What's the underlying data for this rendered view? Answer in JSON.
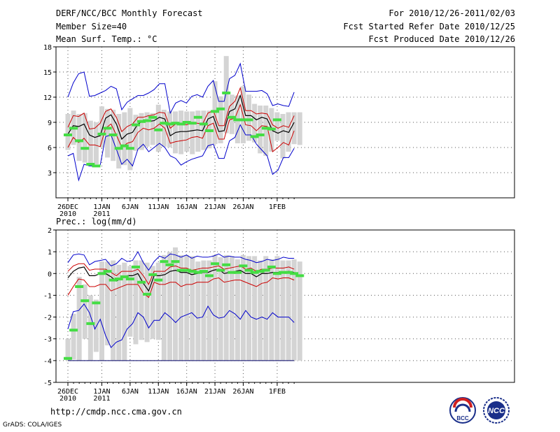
{
  "header": {
    "title": "DERF/NCC/BCC Monthly Forecast",
    "member_size": "Member Size=40",
    "variable_temp": "Mean Surf. Temp.: °C",
    "forecast_period": "For 2010/12/26-2011/02/03",
    "start_refer": "Fcst Started Refer Date 2010/12/25",
    "produced": "Fcst Produced Date 2010/12/26"
  },
  "panel2_label": "Prec.: log(mm/d)",
  "footer": {
    "url": "http://cmdp.ncc.cma.gov.cn",
    "credit": "GrADS: COLA/IGES"
  },
  "logos": {
    "bcc": "BCC",
    "ncc": "NCC"
  },
  "colors": {
    "ensemble_mean": "#000000",
    "spread": "#cc0000",
    "extremes": "#0000cc",
    "observed": "#44dd44",
    "box": "#d4d4d4",
    "grid": "#555555"
  },
  "chart_data": [
    {
      "type": "line",
      "title": "Mean Surf. Temp.: °C",
      "ylim": [
        0,
        18
      ],
      "yticks": [
        3,
        6,
        9,
        12,
        15,
        18
      ],
      "x_tick_days": [
        0,
        6,
        11,
        16,
        21,
        26,
        31,
        37
      ],
      "x_tick_labels": [
        [
          "26DEC",
          "2010"
        ],
        [
          "1JAN",
          "2011"
        ],
        [
          "6JAN"
        ],
        [
          "11JAN"
        ],
        [
          "16JAN"
        ],
        [
          "21JAN"
        ],
        [
          "26JAN"
        ],
        [
          "1FEB"
        ]
      ],
      "days": 40,
      "series": [
        {
          "name": "ensemble_mean",
          "values": [
            7.6,
            8.6,
            8.5,
            8.8,
            7.5,
            7.2,
            7.4,
            9.5,
            9.9,
            8.8,
            7.0,
            7.6,
            7.8,
            8.8,
            9.2,
            9.1,
            9.2,
            9.6,
            9.4,
            7.4,
            7.8,
            7.9,
            7.9,
            8.0,
            8.1,
            8.0,
            9.4,
            9.7,
            7.9,
            8.0,
            10.3,
            10.6,
            12.2,
            9.8,
            9.8,
            9.3,
            9.6,
            9.4,
            8.0,
            7.7,
            8.0,
            7.8,
            9.0
          ]
        },
        {
          "name": "upper_spread",
          "values": [
            8.4,
            9.8,
            9.7,
            10.1,
            8.2,
            8.3,
            8.9,
            10.3,
            10.6,
            9.6,
            7.9,
            8.5,
            8.8,
            9.6,
            9.6,
            9.8,
            9.9,
            10.2,
            10.1,
            8.3,
            8.8,
            8.9,
            8.7,
            8.9,
            8.9,
            8.8,
            10.1,
            10.4,
            8.6,
            8.6,
            10.9,
            11.5,
            13.1,
            10.4,
            10.4,
            10.0,
            10.1,
            10.0,
            8.7,
            8.3,
            8.6,
            8.4,
            9.8
          ]
        },
        {
          "name": "lower_spread",
          "values": [
            6.0,
            7.2,
            6.6,
            7.1,
            6.3,
            6.3,
            6.1,
            8.3,
            8.8,
            7.5,
            6.0,
            6.5,
            6.7,
            7.8,
            8.3,
            8.1,
            8.3,
            8.8,
            8.3,
            6.5,
            6.7,
            6.8,
            6.9,
            7.2,
            7.3,
            7.1,
            8.6,
            8.9,
            7.0,
            7.0,
            9.3,
            9.5,
            11.1,
            8.7,
            8.6,
            8.0,
            8.6,
            8.5,
            5.5,
            6.0,
            6.6,
            6.3,
            8.0
          ]
        },
        {
          "name": "maximum",
          "values": [
            12.0,
            13.7,
            14.8,
            15.0,
            12.1,
            12.2,
            12.5,
            12.8,
            13.3,
            13.0,
            10.5,
            11.4,
            11.8,
            12.2,
            12.2,
            12.5,
            12.9,
            13.6,
            13.6,
            10.1,
            11.3,
            11.6,
            11.3,
            12.1,
            12.3,
            12.0,
            13.3,
            14.0,
            11.5,
            11.5,
            14.2,
            14.6,
            16.0,
            12.7,
            12.7,
            12.7,
            12.8,
            12.4,
            11.0,
            11.2,
            11.0,
            10.9,
            12.6
          ]
        },
        {
          "name": "minimum",
          "values": [
            5.0,
            5.3,
            2.1,
            4.0,
            3.8,
            3.8,
            3.9,
            7.3,
            7.5,
            5.8,
            4.0,
            4.6,
            3.8,
            5.8,
            6.4,
            5.5,
            6.0,
            6.5,
            6.0,
            5.0,
            4.7,
            3.9,
            4.3,
            4.6,
            4.8,
            5.0,
            6.2,
            6.4,
            4.7,
            4.7,
            6.8,
            7.2,
            8.7,
            7.5,
            7.5,
            6.4,
            5.7,
            5.0,
            2.8,
            3.3,
            4.8,
            4.8,
            5.9
          ]
        },
        {
          "name": "observed",
          "values": [
            7.5,
            8.3,
            6.8,
            5.9,
            4.0,
            3.8,
            7.6,
            8.3,
            7.5,
            5.9,
            6.2,
            5.9,
            8.7,
            9.1,
            9.2,
            9.6,
            8.1,
            8.9,
            8.8,
            8.9,
            8.8,
            9.0,
            8.9,
            9.6,
            8.8,
            8.0,
            10.3,
            10.6,
            12.5,
            9.6,
            9.3,
            9.3,
            9.3,
            7.3,
            7.5,
            8.3,
            8.2,
            9.3
          ]
        }
      ],
      "box_top": [
        10.0,
        10.4,
        10.0,
        10.1,
        9.2,
        9.0,
        10.9,
        10.6,
        10.5,
        10.0,
        10.2,
        10.7,
        9.9,
        10.1,
        10.2,
        10.1,
        11.1,
        10.5,
        10.3,
        10.3,
        10.4,
        10.3,
        10.3,
        10.4,
        10.4,
        10.4,
        13.9,
        12.1,
        16.9,
        12.3,
        12.2,
        13.3,
        12.3,
        11.2,
        11.0,
        11.0,
        10.7,
        10.2,
        10.0,
        10.2,
        10.2,
        10.2
      ],
      "box_bottom": [
        5.7,
        6.3,
        4.4,
        4.2,
        3.9,
        4.0,
        6.0,
        4.8,
        4.4,
        3.5,
        3.9,
        3.3,
        5.6,
        5.7,
        6.1,
        6.3,
        5.5,
        6.1,
        6.0,
        5.3,
        5.2,
        5.5,
        5.2,
        5.5,
        5.7,
        5.9,
        6.4,
        6.5,
        7.7,
        7.6,
        6.5,
        6.5,
        6.8,
        6.6,
        5.3,
        5.0,
        5.5,
        6.8,
        4.7,
        5.5,
        6.4,
        6.3
      ]
    },
    {
      "type": "line",
      "title": "Prec.: log(mm/d)",
      "ylim": [
        -5,
        2
      ],
      "yticks": [
        -5,
        -4,
        -3,
        -2,
        -1,
        0,
        1,
        2
      ],
      "x_tick_days": [
        0,
        6,
        11,
        16,
        21,
        26,
        31,
        37
      ],
      "x_tick_labels": [
        [
          "26DEC",
          "2010"
        ],
        [
          "1JAN",
          "2011"
        ],
        [
          "6JAN"
        ],
        [
          "11JAN"
        ],
        [
          "16JAN"
        ],
        [
          "21JAN"
        ],
        [
          "26JAN"
        ],
        [
          "1FEB"
        ]
      ],
      "days": 40,
      "reference_line": -4,
      "series": [
        {
          "name": "ensemble_mean",
          "values": [
            -0.2,
            0.1,
            0.25,
            0.3,
            -0.1,
            -0.1,
            0.0,
            0.0,
            -0.15,
            -0.35,
            -0.2,
            -0.1,
            -0.1,
            0.0,
            -0.45,
            -0.8,
            -0.1,
            -0.1,
            -0.05,
            0.1,
            0.15,
            0.05,
            0.05,
            -0.05,
            0.0,
            0.05,
            0.05,
            0.15,
            0.2,
            0.0,
            0.05,
            0.1,
            0.15,
            0.0,
            0.0,
            -0.15,
            0.0,
            0.0,
            0.05,
            0.05,
            0.05,
            0.1,
            0.05
          ]
        },
        {
          "name": "upper_spread",
          "values": [
            0.1,
            0.35,
            0.45,
            0.45,
            0.15,
            0.2,
            0.2,
            0.2,
            0.05,
            -0.1,
            0.1,
            0.1,
            0.1,
            0.2,
            -0.1,
            -0.5,
            0.1,
            0.1,
            0.1,
            0.3,
            0.35,
            0.25,
            0.25,
            0.15,
            0.2,
            0.25,
            0.25,
            0.3,
            0.35,
            0.2,
            0.25,
            0.3,
            0.35,
            0.2,
            0.25,
            0.1,
            0.2,
            0.2,
            0.25,
            0.25,
            0.25,
            0.3,
            0.2
          ]
        },
        {
          "name": "lower_spread",
          "values": [
            -1.0,
            -0.6,
            -0.25,
            -0.3,
            -0.6,
            -0.6,
            -0.5,
            -0.5,
            -0.8,
            -0.7,
            -0.6,
            -0.5,
            -0.5,
            -0.5,
            -0.9,
            -1.1,
            -0.4,
            -0.5,
            -0.5,
            -0.4,
            -0.4,
            -0.6,
            -0.5,
            -0.5,
            -0.4,
            -0.4,
            -0.4,
            -0.25,
            -0.2,
            -0.4,
            -0.35,
            -0.3,
            -0.3,
            -0.4,
            -0.5,
            -0.6,
            -0.45,
            -0.4,
            -0.2,
            -0.25,
            -0.2,
            -0.2,
            -0.3
          ]
        },
        {
          "name": "maximum",
          "values": [
            0.5,
            0.85,
            0.9,
            0.85,
            0.4,
            0.55,
            0.6,
            0.65,
            0.35,
            0.45,
            0.7,
            0.55,
            0.6,
            1.0,
            0.5,
            0.15,
            0.55,
            0.8,
            0.7,
            0.9,
            0.85,
            0.75,
            0.85,
            0.7,
            0.8,
            0.75,
            0.75,
            0.8,
            0.9,
            0.75,
            0.8,
            0.75,
            0.75,
            0.65,
            0.6,
            0.5,
            0.55,
            0.65,
            0.6,
            0.65,
            0.75,
            0.7,
            0.7
          ]
        },
        {
          "name": "minimum",
          "values": [
            -2.55,
            -1.75,
            -1.7,
            -1.4,
            -1.8,
            -2.55,
            -2.1,
            -2.85,
            -3.4,
            -3.15,
            -3.05,
            -2.55,
            -2.3,
            -1.8,
            -2.0,
            -2.5,
            -2.15,
            -2.15,
            -1.8,
            -2.0,
            -2.25,
            -2.0,
            -1.9,
            -1.8,
            -2.05,
            -2.0,
            -1.5,
            -1.9,
            -2.05,
            -2.0,
            -1.7,
            -1.85,
            -2.1,
            -1.7,
            -2.0,
            -2.1,
            -2.0,
            -2.1,
            -1.8,
            -2.0,
            -2.0,
            -2.0,
            -2.25
          ]
        },
        {
          "name": "observed",
          "values": [
            -3.9,
            -2.6,
            -0.6,
            -1.25,
            -2.3,
            -1.35,
            0.0,
            0.1,
            -0.3,
            -0.25,
            -0.15,
            -0.25,
            0.3,
            -0.4,
            -0.95,
            -0.05,
            -0.3,
            0.55,
            0.4,
            0.55,
            0.15,
            0.15,
            0.1,
            0.05,
            0.1,
            -0.1,
            0.45,
            0.15,
            0.4,
            0.05,
            0.05,
            0.35,
            0.15,
            0.05,
            0.1,
            0.15,
            0.3,
            0.0,
            0.05,
            0.05,
            0.0,
            -0.1
          ]
        }
      ],
      "box_top": [
        -3.0,
        -1.85,
        -0.15,
        -0.5,
        -1.0,
        -1.2,
        0.55,
        0.55,
        0.6,
        0.4,
        0.5,
        0.35,
        0.6,
        0.6,
        0.5,
        0.35,
        0.5,
        0.85,
        1.0,
        1.2,
        0.85,
        0.85,
        0.8,
        0.55,
        0.6,
        0.6,
        0.85,
        0.75,
        0.85,
        0.8,
        0.65,
        0.85,
        0.8,
        0.8,
        0.6,
        0.8,
        0.65,
        0.8,
        0.6,
        0.6,
        0.65,
        0.55
      ],
      "box_bottom": [
        -4.0,
        -3.95,
        -4.0,
        -3.0,
        -4.0,
        -3.6,
        -4.0,
        -3.3,
        -4.0,
        -4.0,
        -4.0,
        -2.9,
        -3.25,
        -3.05,
        -3.15,
        -3.0,
        -3.05,
        -4.0,
        -4.0,
        -4.0,
        -4.0,
        -4.0,
        -4.0,
        -4.0,
        -4.0,
        -4.0,
        -4.0,
        -4.0,
        -4.0,
        -4.0,
        -4.0,
        -4.0,
        -4.0,
        -4.0,
        -4.0,
        -4.0,
        -4.0,
        -4.0,
        -4.0,
        -4.0,
        -4.0,
        -4.0
      ]
    }
  ]
}
